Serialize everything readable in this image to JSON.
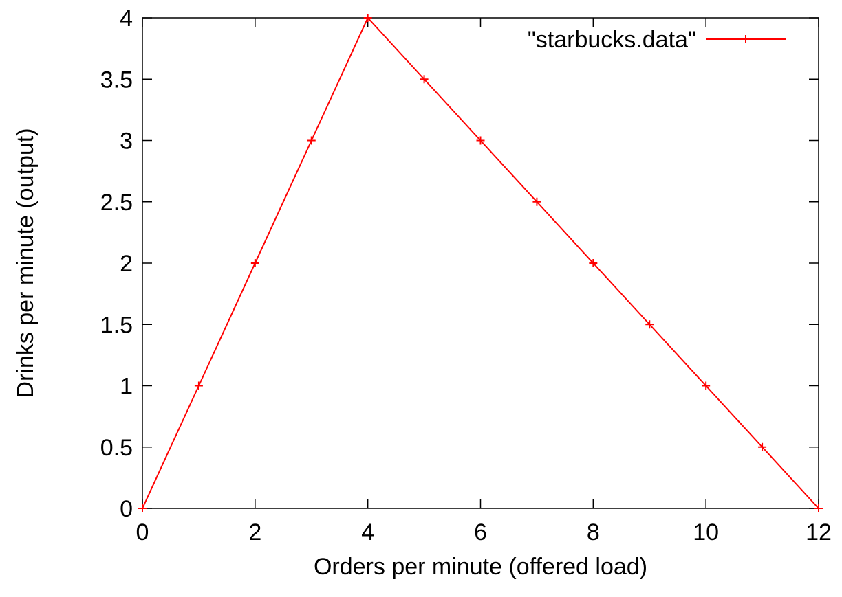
{
  "chart_data": {
    "type": "line",
    "title": "",
    "xlabel": "Orders per minute (offered load)",
    "ylabel": "Drinks per minute (output)",
    "xlim": [
      0,
      12
    ],
    "ylim": [
      0,
      4
    ],
    "xticks": [
      0,
      2,
      4,
      6,
      8,
      10,
      12
    ],
    "yticks": [
      0,
      0.5,
      1,
      1.5,
      2,
      2.5,
      3,
      3.5,
      4
    ],
    "xtick_labels": [
      "0",
      "2",
      "4",
      "6",
      "8",
      "10",
      "12"
    ],
    "ytick_labels": [
      "0",
      "0.5",
      "1",
      "1.5",
      "2",
      "2.5",
      "3",
      "3.5",
      "4"
    ],
    "grid": false,
    "legend_position": "top-right",
    "series": [
      {
        "name": "\"starbucks.data\"",
        "color": "#ff0000",
        "marker": "plus",
        "x": [
          0,
          1,
          2,
          3,
          4,
          5,
          6,
          7,
          8,
          9,
          10,
          11,
          12
        ],
        "y": [
          0,
          1,
          2,
          3,
          4,
          3.5,
          3,
          2.5,
          2,
          1.5,
          1,
          0.5,
          0
        ]
      }
    ]
  }
}
